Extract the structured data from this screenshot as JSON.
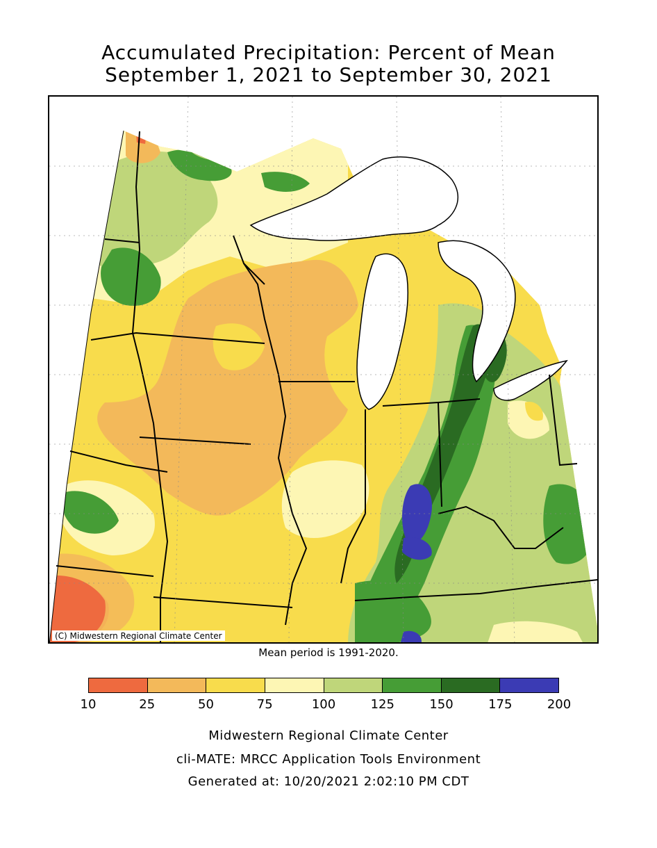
{
  "title": {
    "line1": "Accumulated Precipitation: Percent of Mean",
    "line2": "September 1, 2021 to September 30, 2021"
  },
  "map": {
    "copyright": "(C) Midwestern Regional Climate Center"
  },
  "mean_note": "Mean period is 1991-2020.",
  "legend": {
    "bins": [
      {
        "from": 10,
        "to": 25,
        "color": "#ee6a3f"
      },
      {
        "from": 25,
        "to": 50,
        "color": "#f3b95a"
      },
      {
        "from": 50,
        "to": 75,
        "color": "#f8dc4c"
      },
      {
        "from": 75,
        "to": 100,
        "color": "#fdf6b4"
      },
      {
        "from": 100,
        "to": 125,
        "color": "#bfd67a"
      },
      {
        "from": 125,
        "to": 150,
        "color": "#469d36"
      },
      {
        "from": 150,
        "to": 175,
        "color": "#2a6b22"
      },
      {
        "from": 175,
        "to": 200,
        "color": "#3b3bb4"
      }
    ],
    "ticks": [
      "10",
      "25",
      "50",
      "75",
      "100",
      "125",
      "150",
      "175",
      "200"
    ]
  },
  "footer": {
    "line1": "Midwestern Regional Climate Center",
    "line2": "cli-MATE: MRCC Application Tools Environment",
    "line3": "Generated at: 10/20/2021 2:02:10 PM CDT"
  }
}
